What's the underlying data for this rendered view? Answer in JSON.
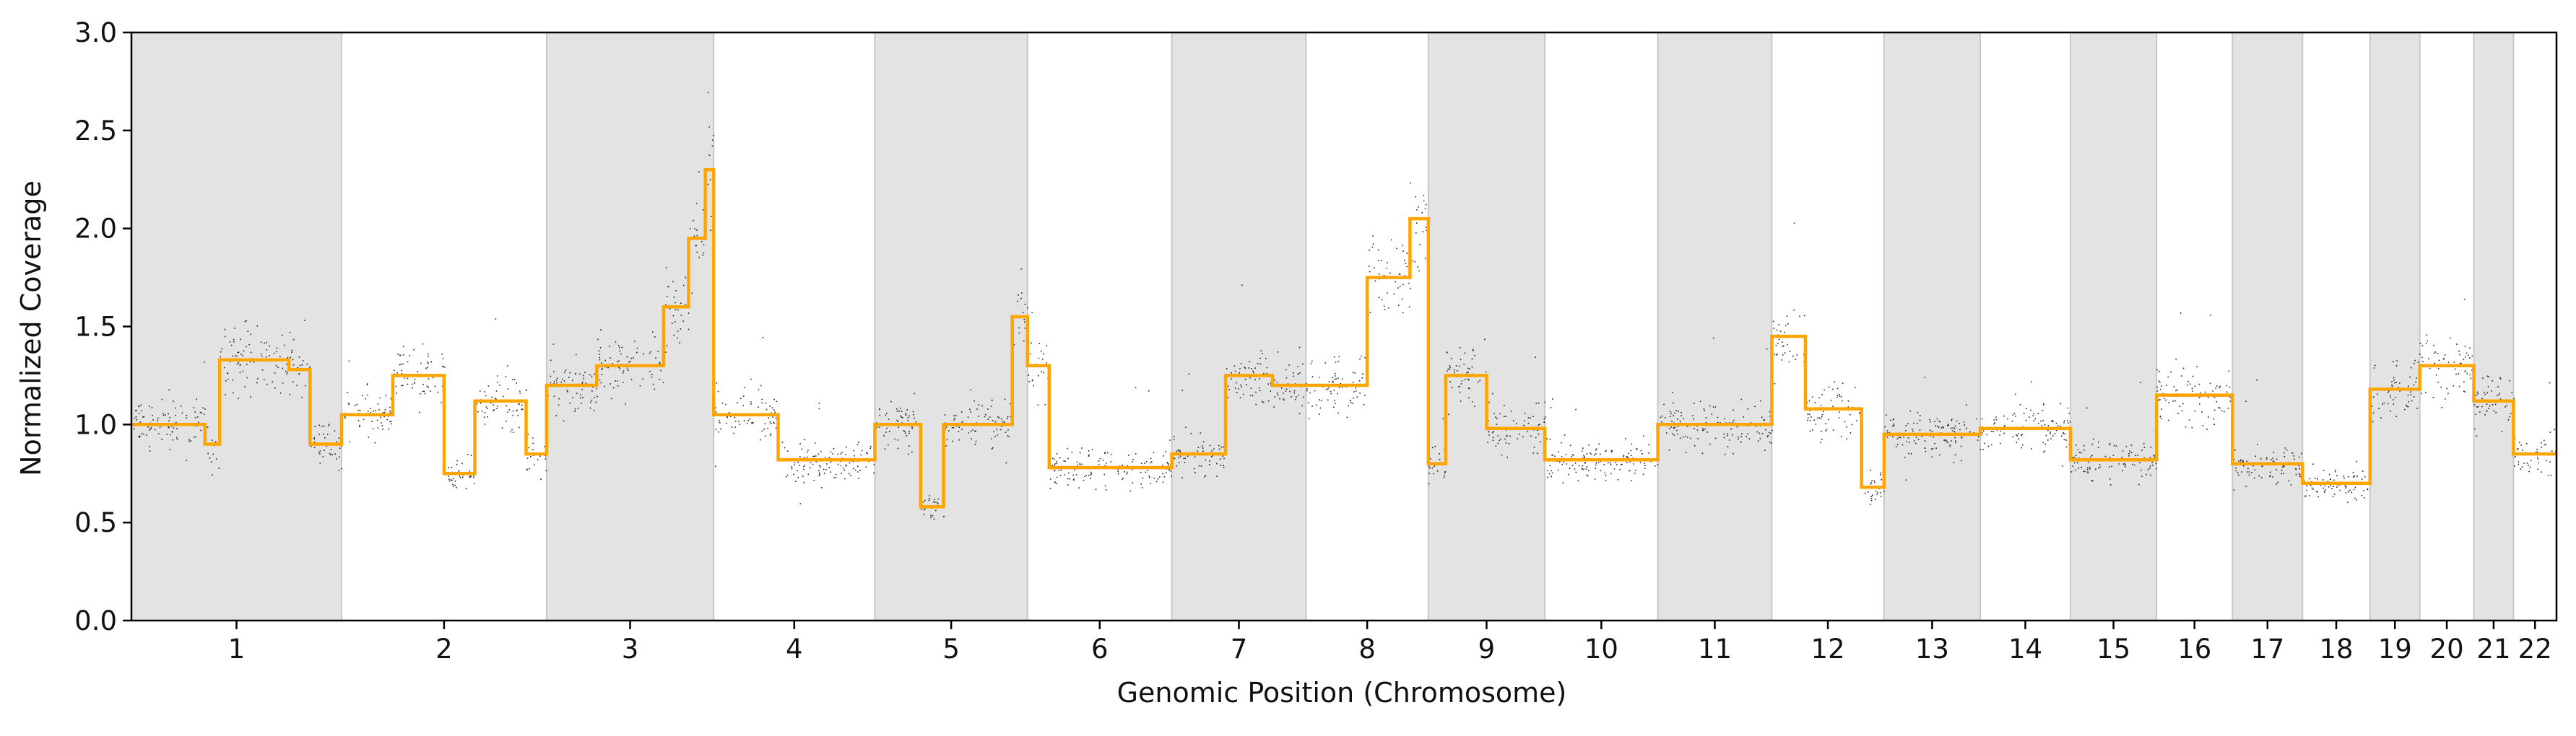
{
  "chart_data": {
    "type": "scatter",
    "xlabel": "Genomic Position (Chromosome)",
    "ylabel": "Normalized Coverage",
    "ylim": [
      0,
      3.0
    ],
    "yticks": [
      "0.0",
      "0.5",
      "1.0",
      "1.5",
      "2.0",
      "2.5",
      "3.0"
    ],
    "grid": false,
    "legend": "none",
    "colors": {
      "points": "#000000",
      "segments": "#ffa500",
      "band": "#e3e3e3",
      "band_edge": "#c8c8c8"
    },
    "chromosomes": [
      {
        "label": "1",
        "length": 249,
        "shaded": true
      },
      {
        "label": "2",
        "length": 243,
        "shaded": false
      },
      {
        "label": "3",
        "length": 198,
        "shaded": true
      },
      {
        "label": "4",
        "length": 191,
        "shaded": false
      },
      {
        "label": "5",
        "length": 181,
        "shaded": true
      },
      {
        "label": "6",
        "length": 171,
        "shaded": false
      },
      {
        "label": "7",
        "length": 159,
        "shaded": true
      },
      {
        "label": "8",
        "length": 145,
        "shaded": false
      },
      {
        "label": "9",
        "length": 138,
        "shaded": true
      },
      {
        "label": "10",
        "length": 134,
        "shaded": false
      },
      {
        "label": "11",
        "length": 135,
        "shaded": true
      },
      {
        "label": "12",
        "length": 133,
        "shaded": false
      },
      {
        "label": "13",
        "length": 114,
        "shaded": true
      },
      {
        "label": "14",
        "length": 107,
        "shaded": false
      },
      {
        "label": "15",
        "length": 102,
        "shaded": true
      },
      {
        "label": "16",
        "length": 90,
        "shaded": false
      },
      {
        "label": "17",
        "length": 83,
        "shaded": true
      },
      {
        "label": "18",
        "length": 80,
        "shaded": false
      },
      {
        "label": "19",
        "length": 59,
        "shaded": true
      },
      {
        "label": "20",
        "length": 64,
        "shaded": false
      },
      {
        "label": "21",
        "length": 47,
        "shaded": true
      },
      {
        "label": "22",
        "length": 51,
        "shaded": false
      }
    ],
    "segments": [
      {
        "chrom": "1",
        "start": 0,
        "end": 0.08,
        "value": 1.0
      },
      {
        "chrom": "1",
        "start": 0.08,
        "end": 0.35,
        "value": 1.0
      },
      {
        "chrom": "1",
        "start": 0.35,
        "end": 0.42,
        "value": 0.9
      },
      {
        "chrom": "1",
        "start": 0.42,
        "end": 0.75,
        "value": 1.33
      },
      {
        "chrom": "1",
        "start": 0.75,
        "end": 0.85,
        "value": 1.28
      },
      {
        "chrom": "1",
        "start": 0.85,
        "end": 1.0,
        "value": 0.9
      },
      {
        "chrom": "2",
        "start": 0,
        "end": 0.25,
        "value": 1.05
      },
      {
        "chrom": "2",
        "start": 0.25,
        "end": 0.5,
        "value": 1.25
      },
      {
        "chrom": "2",
        "start": 0.5,
        "end": 0.65,
        "value": 0.75
      },
      {
        "chrom": "2",
        "start": 0.65,
        "end": 0.9,
        "value": 1.12
      },
      {
        "chrom": "2",
        "start": 0.9,
        "end": 1.0,
        "value": 0.85
      },
      {
        "chrom": "3",
        "start": 0,
        "end": 0.3,
        "value": 1.2
      },
      {
        "chrom": "3",
        "start": 0.3,
        "end": 0.7,
        "value": 1.3
      },
      {
        "chrom": "3",
        "start": 0.7,
        "end": 0.85,
        "value": 1.6
      },
      {
        "chrom": "3",
        "start": 0.85,
        "end": 0.95,
        "value": 1.95
      },
      {
        "chrom": "3",
        "start": 0.95,
        "end": 1.0,
        "value": 2.3
      },
      {
        "chrom": "4",
        "start": 0,
        "end": 0.4,
        "value": 1.05
      },
      {
        "chrom": "4",
        "start": 0.4,
        "end": 1.0,
        "value": 0.82
      },
      {
        "chrom": "5",
        "start": 0,
        "end": 0.3,
        "value": 1.0
      },
      {
        "chrom": "5",
        "start": 0.3,
        "end": 0.45,
        "value": 0.58
      },
      {
        "chrom": "5",
        "start": 0.45,
        "end": 0.9,
        "value": 1.0
      },
      {
        "chrom": "5",
        "start": 0.9,
        "end": 1.0,
        "value": 1.55
      },
      {
        "chrom": "6",
        "start": 0,
        "end": 0.15,
        "value": 1.3
      },
      {
        "chrom": "6",
        "start": 0.15,
        "end": 1.0,
        "value": 0.78
      },
      {
        "chrom": "7",
        "start": 0,
        "end": 0.4,
        "value": 0.85
      },
      {
        "chrom": "7",
        "start": 0.4,
        "end": 0.75,
        "value": 1.25
      },
      {
        "chrom": "7",
        "start": 0.75,
        "end": 1.0,
        "value": 1.2
      },
      {
        "chrom": "8",
        "start": 0,
        "end": 0.5,
        "value": 1.2
      },
      {
        "chrom": "8",
        "start": 0.5,
        "end": 0.85,
        "value": 1.75
      },
      {
        "chrom": "8",
        "start": 0.85,
        "end": 1.0,
        "value": 2.05
      },
      {
        "chrom": "9",
        "start": 0,
        "end": 0.15,
        "value": 0.8
      },
      {
        "chrom": "9",
        "start": 0.15,
        "end": 0.5,
        "value": 1.25
      },
      {
        "chrom": "9",
        "start": 0.5,
        "end": 1.0,
        "value": 0.98
      },
      {
        "chrom": "10",
        "start": 0,
        "end": 1.0,
        "value": 0.82
      },
      {
        "chrom": "11",
        "start": 0,
        "end": 1.0,
        "value": 1.0
      },
      {
        "chrom": "12",
        "start": 0,
        "end": 0.3,
        "value": 1.45
      },
      {
        "chrom": "12",
        "start": 0.3,
        "end": 0.8,
        "value": 1.08
      },
      {
        "chrom": "12",
        "start": 0.8,
        "end": 1.0,
        "value": 0.68
      },
      {
        "chrom": "13",
        "start": 0,
        "end": 1.0,
        "value": 0.95
      },
      {
        "chrom": "14",
        "start": 0,
        "end": 1.0,
        "value": 0.98
      },
      {
        "chrom": "15",
        "start": 0,
        "end": 1.0,
        "value": 0.82
      },
      {
        "chrom": "16",
        "start": 0,
        "end": 1.0,
        "value": 1.15
      },
      {
        "chrom": "17",
        "start": 0,
        "end": 1.0,
        "value": 0.8
      },
      {
        "chrom": "18",
        "start": 0,
        "end": 1.0,
        "value": 0.7
      },
      {
        "chrom": "19",
        "start": 0,
        "end": 1.0,
        "value": 1.18
      },
      {
        "chrom": "20",
        "start": 0,
        "end": 1.0,
        "value": 1.3
      },
      {
        "chrom": "21",
        "start": 0,
        "end": 1.0,
        "value": 1.12
      },
      {
        "chrom": "22",
        "start": 0,
        "end": 1.0,
        "value": 0.85
      }
    ]
  }
}
